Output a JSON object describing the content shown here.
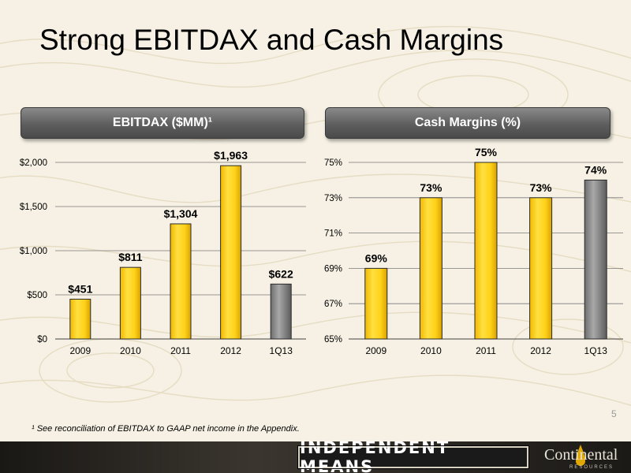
{
  "title": "Strong EBITDAX and Cash Margins",
  "footnote": "¹ See reconciliation of EBITDAX to GAAP net income in the Appendix.",
  "page_number": "5",
  "footer": {
    "banner": "INDEPENDENT MEANS",
    "logo_name": "Continental",
    "logo_sub": "RESOURCES"
  },
  "colors": {
    "bar_gold": "#ffd21a",
    "bar_gold_dark": "#e8b400",
    "bar_gray": "#8a8a8a",
    "header": "#5e5e5e"
  },
  "chart_data": [
    {
      "type": "bar",
      "header": "EBITDAX  ($MM)¹",
      "categories": [
        "2009",
        "2010",
        "2011",
        "2012",
        "1Q13"
      ],
      "values": [
        451,
        811,
        1304,
        1963,
        622
      ],
      "data_labels": [
        "$451",
        "$811",
        "$1,304",
        "$1,963",
        "$622"
      ],
      "highlight_last": true,
      "ylim": [
        0,
        2000
      ],
      "yticks": [
        0,
        500,
        1000,
        1500,
        2000
      ],
      "ytick_labels": [
        "$0",
        "$500",
        "$1,000",
        "$1,500",
        "$2,000"
      ],
      "grid": true
    },
    {
      "type": "bar",
      "header": "Cash Margins (%)",
      "categories": [
        "2009",
        "2010",
        "2011",
        "2012",
        "1Q13"
      ],
      "values": [
        69,
        73,
        75,
        73,
        74
      ],
      "data_labels": [
        "69%",
        "73%",
        "75%",
        "73%",
        "74%"
      ],
      "highlight_last": true,
      "ylim": [
        65,
        75
      ],
      "yticks": [
        65,
        67,
        69,
        71,
        73,
        75
      ],
      "ytick_labels": [
        "65%",
        "67%",
        "69%",
        "71%",
        "73%",
        "75%"
      ],
      "grid": true
    }
  ]
}
